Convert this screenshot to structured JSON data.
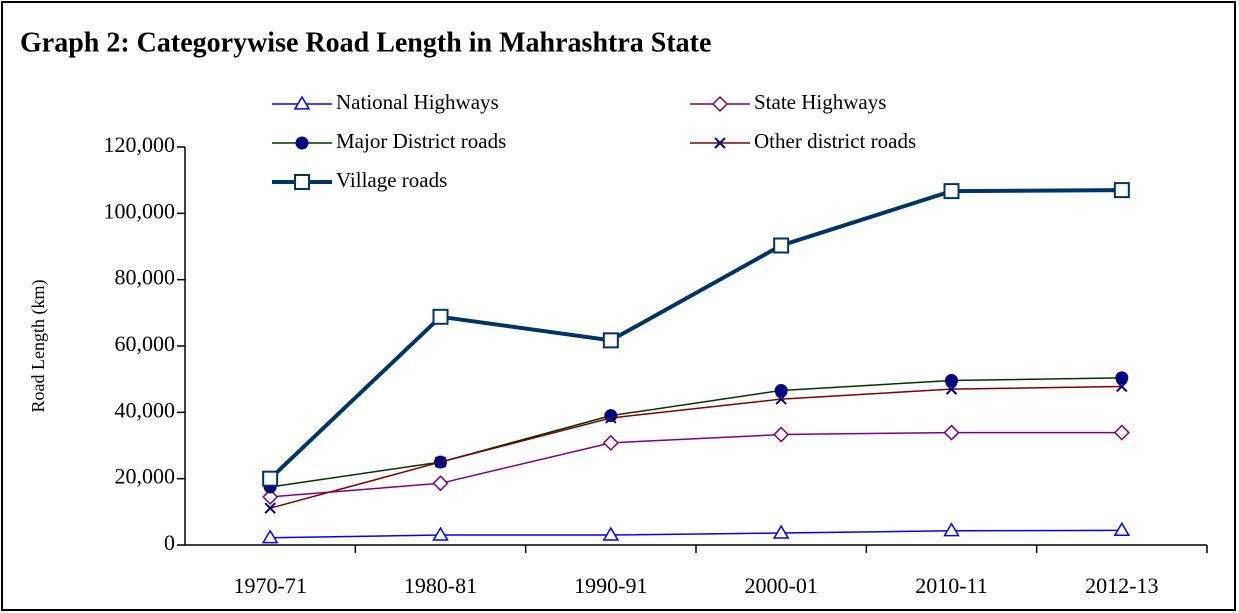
{
  "chart_data": {
    "type": "line",
    "title": "Graph 2: Categorywise Road Length in Mahrashtra State",
    "y_label": "Road Length (km)",
    "categories": [
      "1970-71",
      "1980-81",
      "1990-91",
      "2000-01",
      "2010-11",
      "2012-13"
    ],
    "series": [
      {
        "name": "National Highways",
        "color": "#0000ff",
        "marker": "triangle",
        "values": [
          2200,
          3000,
          3000,
          3600,
          4300,
          4400
        ]
      },
      {
        "name": "State Highways",
        "color": "#800080",
        "marker": "diamond",
        "values": [
          14500,
          18600,
          30800,
          33300,
          33900,
          33900
        ]
      },
      {
        "name": "Major District roads",
        "color": "#003300",
        "marker": "circle",
        "values": [
          17500,
          25000,
          39000,
          46600,
          49600,
          50400
        ]
      },
      {
        "name": "Other district roads",
        "color": "#800000",
        "marker": "x",
        "values": [
          11100,
          25000,
          38300,
          44000,
          47000,
          47800
        ]
      },
      {
        "name": "Village roads",
        "color": "#003366",
        "marker": "square",
        "values": [
          20000,
          68800,
          61700,
          90300,
          106700,
          107000
        ]
      }
    ],
    "ylim": [
      0,
      120000
    ],
    "yticks": [
      0,
      {
        "value": 20000,
        "label": "20,000"
      },
      {
        "value": 40000,
        "label": "40,000"
      },
      {
        "value": 60000,
        "label": "60,000"
      },
      {
        "value": 80000,
        "label": "80,000"
      },
      {
        "value": 100000,
        "label": "100,000"
      },
      {
        "value": 120000,
        "label": "120,000"
      }
    ],
    "grid": false
  }
}
